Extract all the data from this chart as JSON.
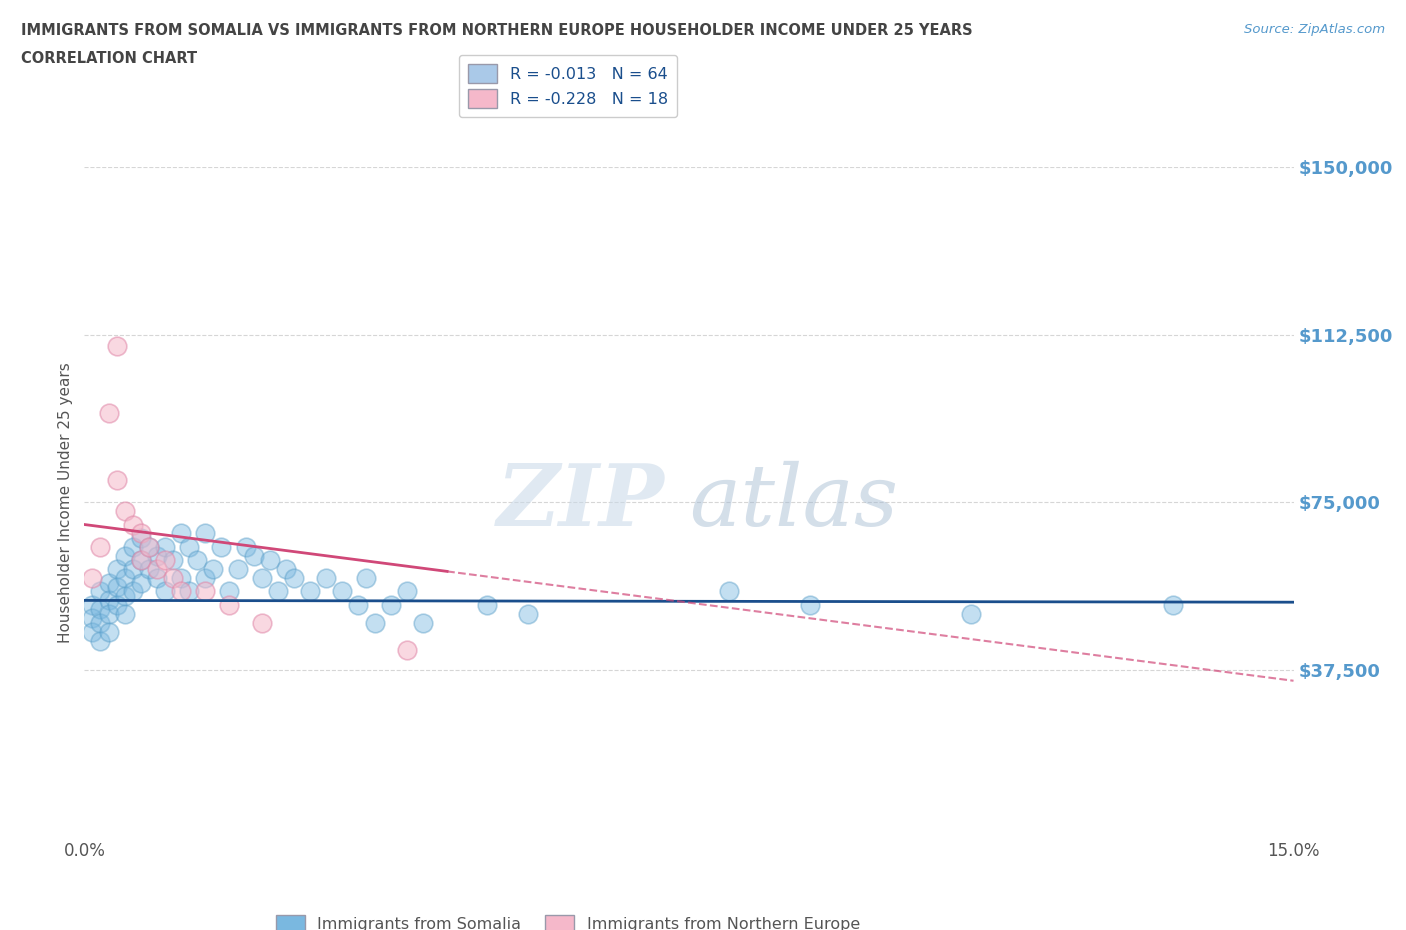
{
  "title_line1": "IMMIGRANTS FROM SOMALIA VS IMMIGRANTS FROM NORTHERN EUROPE HOUSEHOLDER INCOME UNDER 25 YEARS",
  "title_line2": "CORRELATION CHART",
  "source_text": "Source: ZipAtlas.com",
  "ylabel": "Householder Income Under 25 years",
  "xlim": [
    0.0,
    0.15
  ],
  "ylim": [
    0,
    150000
  ],
  "yticks": [
    0,
    37500,
    75000,
    112500,
    150000
  ],
  "ytick_labels": [
    "",
    "$37,500",
    "$75,000",
    "$112,500",
    "$150,000"
  ],
  "xticks": [
    0.0,
    0.05,
    0.1,
    0.15
  ],
  "xtick_labels": [
    "0.0%",
    "",
    "",
    "15.0%"
  ],
  "watermark_zip": "ZIP",
  "watermark_atlas": "atlas",
  "legend_entries": [
    {
      "label": "R = -0.013   N = 64",
      "color": "#aac9e8"
    },
    {
      "label": "R = -0.228   N = 18",
      "color": "#f5b8ca"
    }
  ],
  "legend_labels_bottom": [
    "Immigrants from Somalia",
    "Immigrants from Northern Europe"
  ],
  "somalia_color": "#7ab8e0",
  "somalia_edge_color": "#5a9ec8",
  "northern_europe_color": "#f5b8ca",
  "northern_europe_edge_color": "#e088a8",
  "somalia_line_color": "#1a4e8c",
  "northern_europe_line_color": "#d04878",
  "grid_color": "#cccccc",
  "title_color": "#444444",
  "ytick_color": "#5599cc",
  "xtick_color": "#555555",
  "background_color": "#ffffff",
  "somalia_x": [
    0.001,
    0.001,
    0.001,
    0.002,
    0.002,
    0.002,
    0.002,
    0.003,
    0.003,
    0.003,
    0.003,
    0.004,
    0.004,
    0.004,
    0.005,
    0.005,
    0.005,
    0.005,
    0.006,
    0.006,
    0.006,
    0.007,
    0.007,
    0.007,
    0.008,
    0.008,
    0.009,
    0.009,
    0.01,
    0.01,
    0.011,
    0.012,
    0.012,
    0.013,
    0.013,
    0.014,
    0.015,
    0.015,
    0.016,
    0.017,
    0.018,
    0.019,
    0.02,
    0.021,
    0.022,
    0.023,
    0.024,
    0.025,
    0.026,
    0.028,
    0.03,
    0.032,
    0.034,
    0.035,
    0.036,
    0.038,
    0.04,
    0.042,
    0.05,
    0.055,
    0.08,
    0.09,
    0.11,
    0.135
  ],
  "somalia_y": [
    52000,
    49000,
    46000,
    55000,
    51000,
    48000,
    44000,
    57000,
    53000,
    50000,
    46000,
    60000,
    56000,
    52000,
    63000,
    58000,
    54000,
    50000,
    65000,
    60000,
    55000,
    67000,
    62000,
    57000,
    65000,
    60000,
    63000,
    58000,
    65000,
    55000,
    62000,
    68000,
    58000,
    65000,
    55000,
    62000,
    68000,
    58000,
    60000,
    65000,
    55000,
    60000,
    65000,
    63000,
    58000,
    62000,
    55000,
    60000,
    58000,
    55000,
    58000,
    55000,
    52000,
    58000,
    48000,
    52000,
    55000,
    48000,
    52000,
    50000,
    55000,
    52000,
    50000,
    52000
  ],
  "northern_europe_x": [
    0.001,
    0.002,
    0.003,
    0.004,
    0.004,
    0.005,
    0.006,
    0.007,
    0.007,
    0.008,
    0.009,
    0.01,
    0.011,
    0.012,
    0.015,
    0.018,
    0.022,
    0.04
  ],
  "northern_europe_y": [
    58000,
    65000,
    95000,
    110000,
    80000,
    73000,
    70000,
    68000,
    62000,
    65000,
    60000,
    62000,
    58000,
    55000,
    55000,
    52000,
    48000,
    42000
  ],
  "somalia_line_x0": 0.0,
  "somalia_line_x1": 0.15,
  "somalia_line_y0": 53000,
  "somalia_line_y1": 52600,
  "ne_line_x0": 0.0,
  "ne_line_x1": 0.15,
  "ne_line_y0": 70000,
  "ne_line_y1": 35000
}
